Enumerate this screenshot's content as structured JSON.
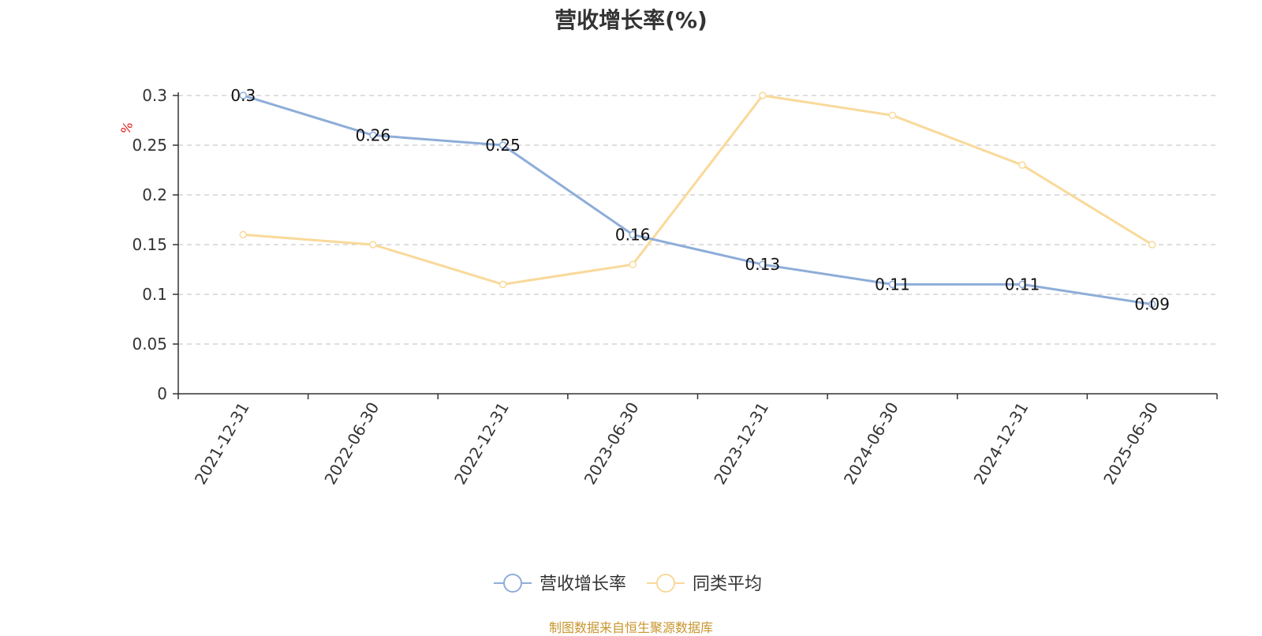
{
  "chart_data": {
    "type": "line",
    "title": "营收增长率(%)",
    "ylabel": "%",
    "categories": [
      "2021-12-31",
      "2022-06-30",
      "2022-12-31",
      "2023-06-30",
      "2023-12-31",
      "2024-06-30",
      "2024-12-31",
      "2025-06-30"
    ],
    "y_ticks": [
      "0",
      "0.05",
      "0.1",
      "0.15",
      "0.2",
      "0.25",
      "0.3"
    ],
    "ylim": [
      0,
      0.3
    ],
    "grid": true,
    "legend_position": "bottom",
    "series": [
      {
        "name": "营收增长率",
        "color": "#8eadd9",
        "values": [
          0.3,
          0.26,
          0.25,
          0.16,
          0.13,
          0.11,
          0.11,
          0.09
        ],
        "labels": [
          "0.3",
          "0.26",
          "0.25",
          "0.16",
          "0.13",
          "0.11",
          "0.11",
          "0.09"
        ],
        "show_labels": true
      },
      {
        "name": "同类平均",
        "color": "#f9d99a",
        "values": [
          0.16,
          0.15,
          0.11,
          0.13,
          0.3,
          0.28,
          0.23,
          0.15
        ],
        "show_labels": false
      }
    ]
  },
  "source_note": "制图数据来自恒生聚源数据库"
}
